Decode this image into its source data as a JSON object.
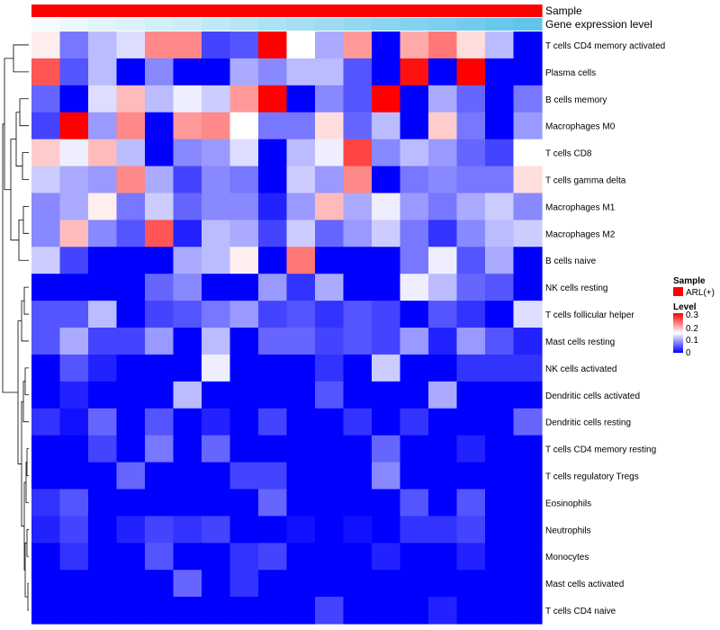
{
  "chart_data": {
    "type": "heatmap",
    "title": "",
    "annotation_tracks": [
      {
        "label": "Sample",
        "levels": [
          "ARL(+)"
        ],
        "colors": {
          "ARL(+)": "#ff0000"
        }
      },
      {
        "label": "Gene expression level",
        "gradient": [
          "#ffffff",
          "#5bc3ea"
        ]
      }
    ],
    "rows": [
      "T cells CD4 memory activated",
      "Plasma cells",
      "B cells memory",
      "Macrophages M0",
      "T cells CD8",
      "T cells gamma delta",
      "Macrophages M1",
      "Macrophages M2",
      "B cells naive",
      "NK cells resting",
      "T cells follicular helper",
      "Mast cells resting",
      "NK cells activated",
      "Dendritic cells activated",
      "Dendritic cells resting",
      "T cells CD4 memory resting",
      "T cells regulatory  Tregs",
      "Eosinophils",
      "Neutrophils",
      "Monocytes",
      "Mast cells activated",
      "T cells CD4 naive"
    ],
    "n_columns": 18,
    "values": [
      [
        0.16,
        0.07,
        0.11,
        0.13,
        0.22,
        0.22,
        0.04,
        0.05,
        0.3,
        0.15,
        0.1,
        0.21,
        0.0,
        0.2,
        0.23,
        0.17,
        0.11,
        0.0
      ],
      [
        0.25,
        0.05,
        0.11,
        0.0,
        0.08,
        0.0,
        0.0,
        0.1,
        0.08,
        0.11,
        0.11,
        0.05,
        0.0,
        0.29,
        0.0,
        0.3,
        0.0,
        0.0
      ],
      [
        0.06,
        0.0,
        0.13,
        0.19,
        0.11,
        0.14,
        0.12,
        0.21,
        0.3,
        0.0,
        0.08,
        0.05,
        0.3,
        0.0,
        0.1,
        0.06,
        0.0,
        0.07
      ],
      [
        0.04,
        0.3,
        0.09,
        0.22,
        0.0,
        0.21,
        0.22,
        0.15,
        0.07,
        0.07,
        0.17,
        0.06,
        0.11,
        0.0,
        0.18,
        0.07,
        0.0,
        0.09
      ],
      [
        0.18,
        0.14,
        0.19,
        0.11,
        0.0,
        0.08,
        0.09,
        0.13,
        0.0,
        0.11,
        0.14,
        0.26,
        0.08,
        0.11,
        0.09,
        0.06,
        0.04,
        0.15
      ],
      [
        0.12,
        0.1,
        0.09,
        0.22,
        0.1,
        0.04,
        0.08,
        0.07,
        0.0,
        0.12,
        0.09,
        0.22,
        0.0,
        0.07,
        0.08,
        0.07,
        0.07,
        0.17
      ],
      [
        0.08,
        0.1,
        0.16,
        0.07,
        0.12,
        0.06,
        0.08,
        0.08,
        0.02,
        0.09,
        0.19,
        0.1,
        0.14,
        0.09,
        0.07,
        0.1,
        0.12,
        0.08
      ],
      [
        0.08,
        0.19,
        0.08,
        0.05,
        0.25,
        0.02,
        0.11,
        0.1,
        0.04,
        0.12,
        0.06,
        0.09,
        0.12,
        0.07,
        0.03,
        0.08,
        0.11,
        0.12
      ],
      [
        0.12,
        0.04,
        0.0,
        0.0,
        0.0,
        0.1,
        0.11,
        0.16,
        0.0,
        0.23,
        0.0,
        0.0,
        0.0,
        0.07,
        0.14,
        0.05,
        0.1,
        0.0
      ],
      [
        0.0,
        0.0,
        0.0,
        0.0,
        0.06,
        0.08,
        0.0,
        0.0,
        0.09,
        0.03,
        0.1,
        0.0,
        0.0,
        0.14,
        0.11,
        0.06,
        0.05,
        0.0
      ],
      [
        0.05,
        0.05,
        0.11,
        0.0,
        0.04,
        0.05,
        0.07,
        0.09,
        0.04,
        0.05,
        0.03,
        0.05,
        0.04,
        0.0,
        0.05,
        0.03,
        0.0,
        0.13
      ],
      [
        0.05,
        0.1,
        0.04,
        0.04,
        0.09,
        0.0,
        0.11,
        0.0,
        0.06,
        0.06,
        0.04,
        0.05,
        0.04,
        0.09,
        0.02,
        0.09,
        0.05,
        0.02
      ],
      [
        0.0,
        0.05,
        0.02,
        0.0,
        0.0,
        0.0,
        0.14,
        0.0,
        0.0,
        0.0,
        0.03,
        0.0,
        0.12,
        0.0,
        0.0,
        0.03,
        0.03,
        0.03
      ],
      [
        0.0,
        0.02,
        0.0,
        0.0,
        0.0,
        0.11,
        0.0,
        0.0,
        0.0,
        0.0,
        0.05,
        0.0,
        0.0,
        0.0,
        0.1,
        0.0,
        0.0,
        0.0
      ],
      [
        0.03,
        0.01,
        0.06,
        0.0,
        0.05,
        0.0,
        0.02,
        0.0,
        0.04,
        0.0,
        0.0,
        0.03,
        0.0,
        0.03,
        0.0,
        0.0,
        0.0,
        0.06
      ],
      [
        0.0,
        0.0,
        0.04,
        0.0,
        0.07,
        0.0,
        0.06,
        0.0,
        0.0,
        0.0,
        0.0,
        0.0,
        0.06,
        0.0,
        0.0,
        0.02,
        0.0,
        0.0
      ],
      [
        0.0,
        0.0,
        0.0,
        0.06,
        0.0,
        0.0,
        0.0,
        0.04,
        0.04,
        0.0,
        0.0,
        0.0,
        0.08,
        0.0,
        0.0,
        0.0,
        0.0,
        0.0
      ],
      [
        0.03,
        0.05,
        0.0,
        0.0,
        0.0,
        0.0,
        0.0,
        0.0,
        0.06,
        0.0,
        0.0,
        0.0,
        0.0,
        0.05,
        0.0,
        0.05,
        0.0,
        0.0
      ],
      [
        0.02,
        0.04,
        0.0,
        0.02,
        0.04,
        0.03,
        0.04,
        0.0,
        0.0,
        0.01,
        0.0,
        0.01,
        0.0,
        0.03,
        0.03,
        0.04,
        0.0,
        0.0
      ],
      [
        0.0,
        0.03,
        0.0,
        0.0,
        0.05,
        0.0,
        0.0,
        0.03,
        0.04,
        0.0,
        0.0,
        0.0,
        0.02,
        0.0,
        0.0,
        0.02,
        0.0,
        0.0
      ],
      [
        0.0,
        0.0,
        0.0,
        0.0,
        0.0,
        0.06,
        0.0,
        0.03,
        0.0,
        0.0,
        0.0,
        0.0,
        0.0,
        0.0,
        0.0,
        0.0,
        0.0,
        0.0
      ],
      [
        0.0,
        0.0,
        0.0,
        0.0,
        0.0,
        0.0,
        0.0,
        0.0,
        0.0,
        0.0,
        0.04,
        0.0,
        0.0,
        0.0,
        0.02,
        0.0,
        0.0,
        0.0
      ]
    ],
    "expression_track": [
      0.06,
      0.12,
      0.18,
      0.22,
      0.28,
      0.32,
      0.38,
      0.44,
      0.5,
      0.55,
      0.6,
      0.65,
      0.7,
      0.75,
      0.8,
      0.86,
      0.92,
      0.97
    ],
    "colorscale": {
      "low": "#0000ff",
      "mid": "#ffffff",
      "high": "#ff0000",
      "range": [
        0,
        0.3
      ],
      "midpoint": 0.15
    },
    "legend": {
      "sample_title": "Sample",
      "sample_item": "ARL(+)",
      "level_title": "Level",
      "ticks": [
        "0.3",
        "0.2",
        "0.1",
        "0"
      ],
      "placement": "right"
    },
    "dendrogram": "rows"
  }
}
